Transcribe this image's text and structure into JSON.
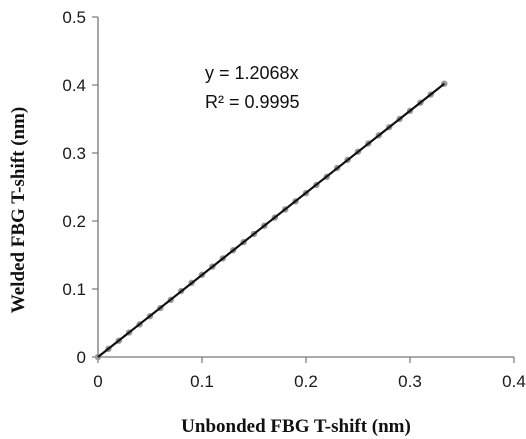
{
  "chart_data": {
    "type": "scatter",
    "xlabel": "Unbonded FBG T-shift (nm)",
    "ylabel": "Welded FBG T-shift (nm)",
    "xlim": [
      0,
      0.4
    ],
    "ylim": [
      0,
      0.5
    ],
    "x_ticks": [
      "0",
      "0.1",
      "0.2",
      "0.3",
      "0.4"
    ],
    "y_ticks": [
      "0",
      "0.1",
      "0.2",
      "0.3",
      "0.4",
      "0.5"
    ],
    "grid": false,
    "legend": "none",
    "series": [
      {
        "color": "#9a9a9a",
        "x": [
          0.0,
          0.01,
          0.02,
          0.03,
          0.04,
          0.05,
          0.06,
          0.07,
          0.08,
          0.09,
          0.1,
          0.11,
          0.12,
          0.13,
          0.14,
          0.15,
          0.16,
          0.17,
          0.18,
          0.19,
          0.2,
          0.21,
          0.22,
          0.23,
          0.24,
          0.25,
          0.26,
          0.27,
          0.28,
          0.29,
          0.3,
          0.31,
          0.32,
          0.333
        ],
        "y": [
          0.0,
          0.012,
          0.024,
          0.036,
          0.048,
          0.06,
          0.072,
          0.084,
          0.097,
          0.109,
          0.121,
          0.133,
          0.145,
          0.157,
          0.169,
          0.181,
          0.193,
          0.205,
          0.217,
          0.229,
          0.241,
          0.253,
          0.265,
          0.278,
          0.29,
          0.302,
          0.314,
          0.326,
          0.338,
          0.35,
          0.362,
          0.374,
          0.386,
          0.402
        ]
      }
    ],
    "trendline": {
      "color": "#111111",
      "slope": 1.2068,
      "x_range": [
        0,
        0.333
      ]
    },
    "annotations": {
      "equation": "y = 1.2068x",
      "r_squared": "R² = 0.9995"
    }
  }
}
